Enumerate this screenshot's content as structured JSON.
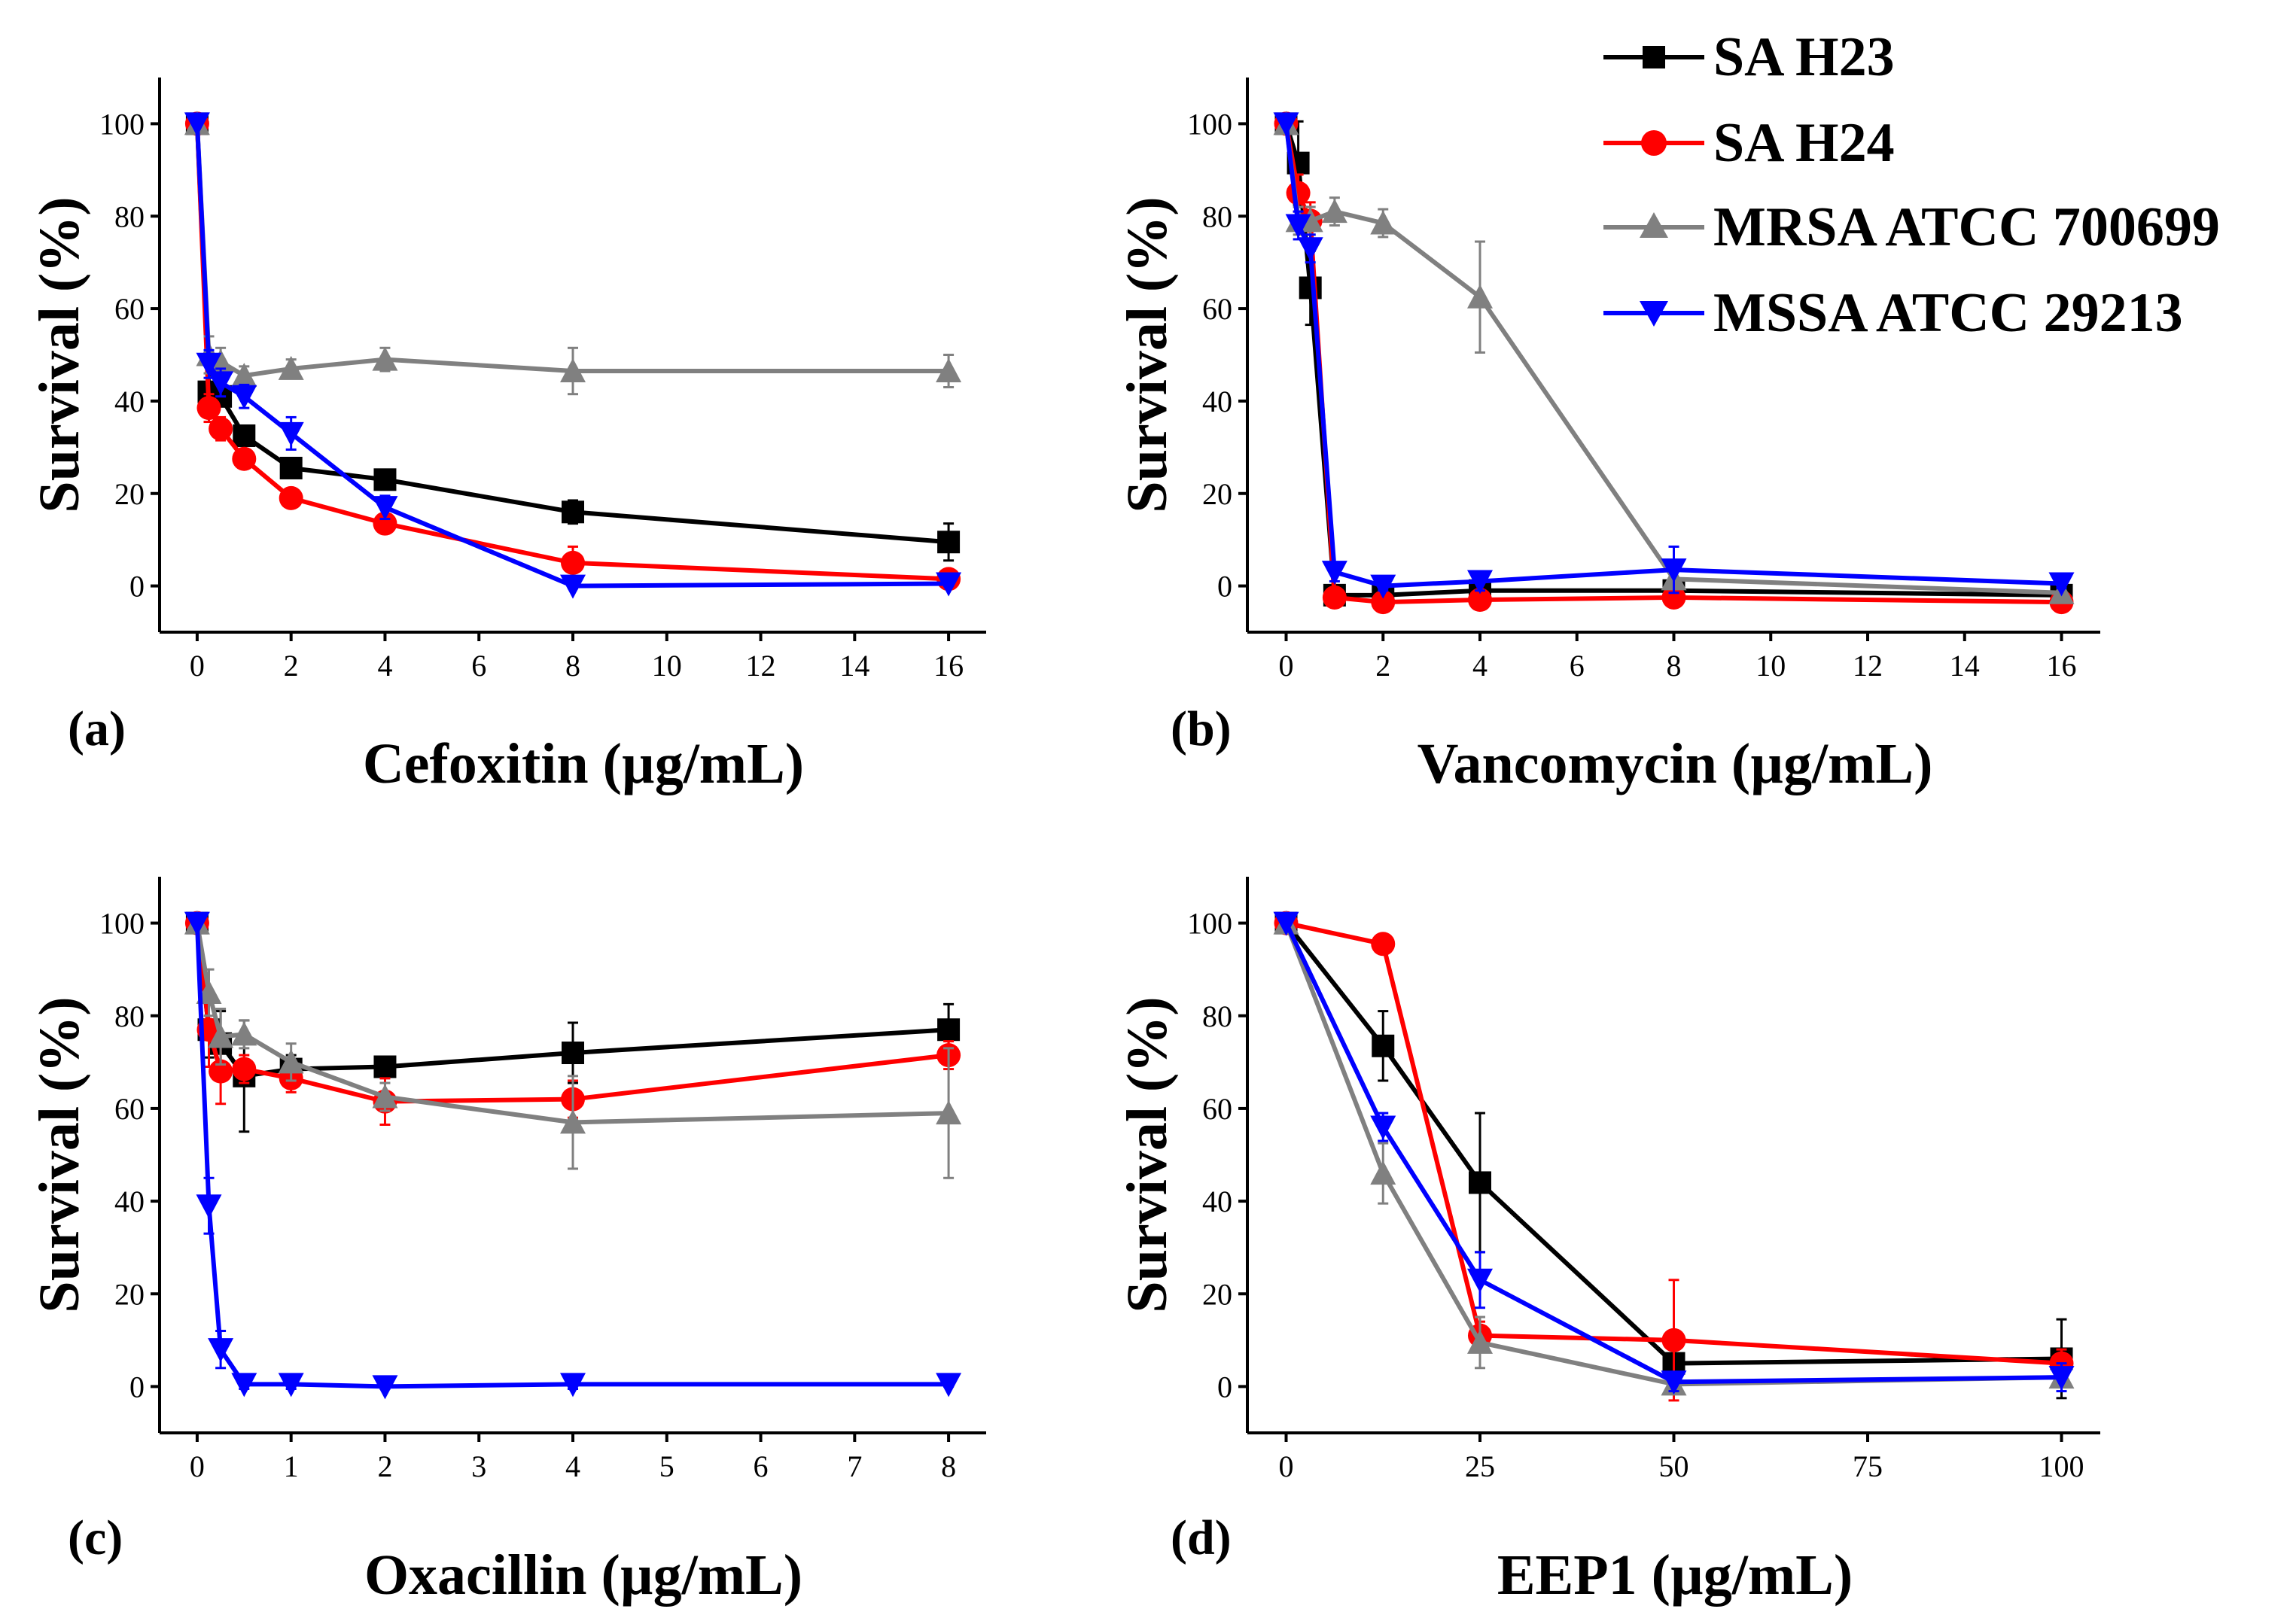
{
  "legend": [
    {
      "name": "SA H23",
      "color": "#000000",
      "marker": "square"
    },
    {
      "name": "SA H24",
      "color": "#ff0000",
      "marker": "circle"
    },
    {
      "name": "MRSA ATCC 700699",
      "color": "#808080",
      "marker": "triangle-up"
    },
    {
      "name": "MSSA ATCC 29213",
      "color": "#0000ff",
      "marker": "triangle-down"
    }
  ],
  "chart_data": [
    {
      "panel": "(a)",
      "type": "line",
      "xlabel": "Cefoxitin (µg/mL)",
      "ylabel": "Survival (%)",
      "xlim": [
        -0.8,
        16.8
      ],
      "ylim": [
        -10,
        110
      ],
      "xticks": [
        0,
        2,
        4,
        6,
        8,
        10,
        12,
        14,
        16
      ],
      "xtick_labels": [
        "0",
        "2",
        "4",
        "6",
        "8",
        "10",
        "12",
        "14",
        "16"
      ],
      "yticks": [
        0,
        20,
        40,
        60,
        80,
        100
      ],
      "ytick_labels": [
        "0",
        "20",
        "40",
        "60",
        "80",
        "100"
      ],
      "series": [
        {
          "name": "SA H23",
          "x": [
            0,
            0.25,
            0.5,
            1,
            2,
            4,
            8,
            16
          ],
          "y": [
            100,
            42,
            41,
            32.5,
            25.5,
            23,
            16,
            9.5
          ],
          "err": [
            0,
            2,
            2,
            2,
            2,
            1.5,
            2.5,
            4
          ]
        },
        {
          "name": "SA H24",
          "x": [
            0,
            0.25,
            0.5,
            1,
            2,
            4,
            8,
            16
          ],
          "y": [
            100,
            38.5,
            34,
            27.5,
            19,
            13.5,
            5,
            1.5
          ],
          "err": [
            0,
            3,
            2.5,
            2,
            1.5,
            1.5,
            3.5,
            1.5
          ]
        },
        {
          "name": "MRSA ATCC 700699",
          "x": [
            0,
            0.25,
            0.5,
            1,
            2,
            4,
            8,
            16
          ],
          "y": [
            100,
            50,
            48.5,
            45.5,
            47,
            49,
            46.5,
            46.5
          ],
          "err": [
            0,
            4,
            3,
            2,
            2,
            2.5,
            5,
            3.5
          ]
        },
        {
          "name": "MSSA ATCC 29213",
          "x": [
            0,
            0.25,
            0.5,
            1,
            2,
            4,
            8,
            16
          ],
          "y": [
            100,
            48,
            44,
            41,
            33,
            17,
            0,
            0.5
          ],
          "err": [
            0,
            3,
            3,
            2.5,
            3.5,
            2.5,
            0.5,
            0.5
          ]
        }
      ]
    },
    {
      "panel": "(b)",
      "type": "line",
      "xlabel": "Vancomycin (µg/mL)",
      "ylabel": "Survival (%)",
      "xlim": [
        -0.8,
        16.8
      ],
      "ylim": [
        -10,
        110
      ],
      "xticks": [
        0,
        2,
        4,
        6,
        8,
        10,
        12,
        14,
        16
      ],
      "xtick_labels": [
        "0",
        "2",
        "4",
        "6",
        "8",
        "10",
        "12",
        "14",
        "16"
      ],
      "yticks": [
        0,
        20,
        40,
        60,
        80,
        100
      ],
      "ytick_labels": [
        "0",
        "20",
        "40",
        "60",
        "80",
        "100"
      ],
      "series": [
        {
          "name": "SA H23",
          "x": [
            0,
            0.25,
            0.5,
            1,
            2,
            4,
            8,
            16
          ],
          "y": [
            100,
            91.5,
            64.5,
            -2,
            -2,
            -1,
            -1,
            -2
          ],
          "err": [
            0,
            9,
            8,
            1,
            1,
            1,
            1,
            1
          ]
        },
        {
          "name": "SA H24",
          "x": [
            0,
            0.25,
            0.5,
            1,
            2,
            4,
            8,
            16
          ],
          "y": [
            100,
            85,
            79,
            -2.5,
            -3.5,
            -3,
            -2.5,
            -3.5
          ],
          "err": [
            0,
            4,
            4,
            1,
            1,
            1,
            1,
            1
          ]
        },
        {
          "name": "MRSA ATCC 700699",
          "x": [
            0,
            0.25,
            0.5,
            1,
            2,
            4,
            8,
            16
          ],
          "y": [
            100,
            79,
            79,
            81,
            78.5,
            62.5,
            1.5,
            -1.5
          ],
          "err": [
            0,
            3,
            3,
            3,
            3,
            12,
            2,
            1
          ]
        },
        {
          "name": "MSSA ATCC 29213",
          "x": [
            0,
            0.25,
            0.5,
            1,
            2,
            4,
            8,
            16
          ],
          "y": [
            100,
            78,
            73,
            3,
            0,
            1,
            3.5,
            0.5
          ],
          "err": [
            0,
            3,
            3,
            2,
            1,
            2,
            5,
            1
          ]
        }
      ]
    },
    {
      "panel": "(c)",
      "type": "line",
      "xlabel": "Oxacillin (µg/mL)",
      "ylabel": "Survival (%)",
      "xlim": [
        -0.4,
        8.4
      ],
      "ylim": [
        -10,
        110
      ],
      "xticks": [
        0,
        1,
        2,
        3,
        4,
        5,
        6,
        7,
        8
      ],
      "xtick_labels": [
        "0",
        "1",
        "2",
        "3",
        "4",
        "5",
        "6",
        "7",
        "8"
      ],
      "yticks": [
        0,
        20,
        40,
        60,
        80,
        100
      ],
      "ytick_labels": [
        "0",
        "20",
        "40",
        "60",
        "80",
        "100"
      ],
      "series": [
        {
          "name": "SA H23",
          "x": [
            0,
            0.125,
            0.25,
            0.5,
            1,
            2,
            4,
            8
          ],
          "y": [
            100,
            77,
            74,
            67,
            68.5,
            69,
            72,
            77
          ],
          "err": [
            0,
            6,
            7,
            12,
            3,
            2,
            6.5,
            5.5
          ]
        },
        {
          "name": "SA H24",
          "x": [
            0,
            0.125,
            0.25,
            0.5,
            1,
            2,
            4,
            8
          ],
          "y": [
            100,
            77,
            68,
            68.5,
            66.5,
            61.5,
            62,
            71.5
          ],
          "err": [
            0,
            8,
            7,
            3,
            3,
            5,
            4,
            3
          ]
        },
        {
          "name": "MRSA ATCC 700699",
          "x": [
            0,
            0.125,
            0.25,
            0.5,
            1,
            2,
            4,
            8
          ],
          "y": [
            100,
            85,
            75.5,
            76,
            70,
            62.5,
            57,
            59
          ],
          "err": [
            0,
            5,
            6,
            3,
            4,
            3,
            10,
            14
          ]
        },
        {
          "name": "MSSA ATCC 29213",
          "x": [
            0,
            0.125,
            0.25,
            0.5,
            1,
            2,
            4,
            8
          ],
          "y": [
            100,
            39,
            8,
            0.5,
            0.5,
            0,
            0.5,
            0.5
          ],
          "err": [
            0,
            6,
            4,
            1,
            1,
            0.5,
            1,
            0.5
          ]
        }
      ]
    },
    {
      "panel": "(d)",
      "type": "line",
      "xlabel": "EEP1 (µg/mL)",
      "ylabel": "Survival (%)",
      "xlim": [
        -5,
        105
      ],
      "ylim": [
        -10,
        110
      ],
      "xticks": [
        0,
        25,
        50,
        75,
        100
      ],
      "xtick_labels": [
        "0",
        "25",
        "50",
        "75",
        "100"
      ],
      "yticks": [
        0,
        20,
        40,
        60,
        80,
        100
      ],
      "ytick_labels": [
        "0",
        "20",
        "40",
        "60",
        "80",
        "100"
      ],
      "series": [
        {
          "name": "SA H23",
          "x": [
            0,
            12.5,
            25,
            50,
            100
          ],
          "y": [
            100,
            73.5,
            44,
            5,
            6
          ],
          "err": [
            0,
            7.5,
            15,
            3,
            8.5
          ]
        },
        {
          "name": "SA H24",
          "x": [
            0,
            12.5,
            25,
            50,
            100
          ],
          "y": [
            100,
            95.5,
            11,
            10,
            5
          ],
          "err": [
            0,
            2,
            3,
            13,
            3
          ]
        },
        {
          "name": "MRSA ATCC 700699",
          "x": [
            0,
            12.5,
            25,
            50,
            100
          ],
          "y": [
            100,
            46,
            9.5,
            0.5,
            2
          ],
          "err": [
            0,
            6.5,
            5.5,
            1,
            2
          ]
        },
        {
          "name": "MSSA ATCC 29213",
          "x": [
            0,
            12.5,
            25,
            50,
            100
          ],
          "y": [
            100,
            56,
            23,
            1,
            2
          ],
          "err": [
            0,
            3,
            6,
            2,
            3
          ]
        }
      ]
    }
  ]
}
